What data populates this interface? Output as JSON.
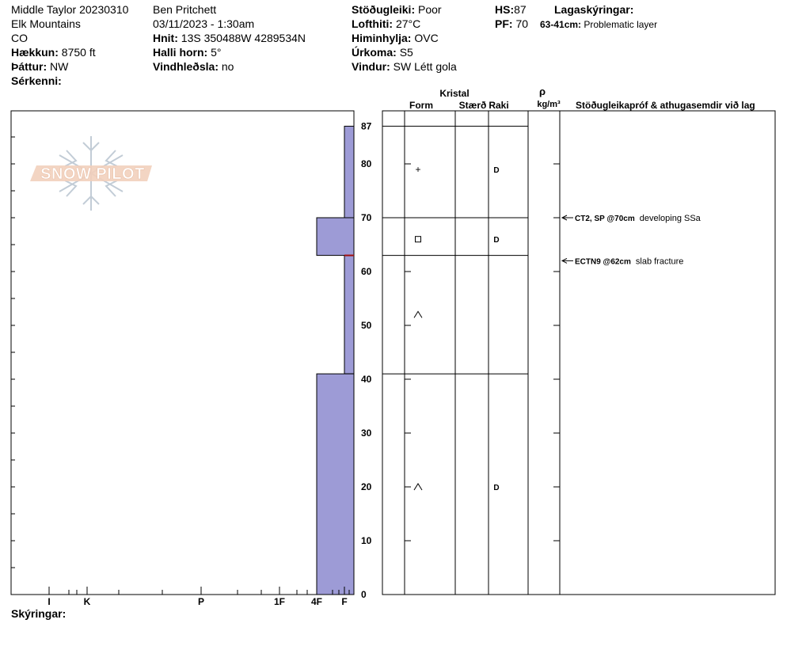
{
  "header": {
    "col1": {
      "site_title": "Middle Taylor 20230310",
      "range": "Elk Mountains",
      "state": "CO",
      "elevation_label": "Hækkun:",
      "elevation_value": "8750 ft",
      "aspect_label": "Þáttur:",
      "aspect_value": "NW",
      "features_label": "Sérkenni:"
    },
    "col2": {
      "observer": "Ben Pritchett",
      "datetime": "03/11/2023 - 1:30am",
      "coords_label": "Hnit:",
      "coords_value": "13S 350488W 4289534N",
      "slope_label": "Halli horn:",
      "slope_value": "5°",
      "wind_loading_label": "Vindhleðsla:",
      "wind_loading_value": "no"
    },
    "col3": {
      "stability_label": "Stöðugleiki:",
      "stability_value": "Poor",
      "air_temp_label": "Lofthiti:",
      "air_temp_value": "27°C",
      "sky_label": "Himinhylja:",
      "sky_value": "OVC",
      "precip_label": "Úrkoma:",
      "precip_value": "S5",
      "wind_label": "Vindur:",
      "wind_value": "SW Létt gola"
    },
    "col4": {
      "hs_label": "HS:",
      "hs_value": "87",
      "pf_label": "PF:",
      "pf_value": "70"
    },
    "col5": {
      "layer_notes_label": "Lagaskýringar:",
      "layer_note_range": "63-41cm:",
      "layer_note_text": "Problematic layer"
    }
  },
  "footer": {
    "notes_label": "Skýringar:"
  },
  "logo": {
    "text": "SNOW PILOT"
  },
  "table_headers": {
    "crystal": "Kristal",
    "form": "Form",
    "size": "Stærð",
    "moisture": "Raki",
    "rho": "ρ",
    "density_unit": "kg/m³",
    "tests": "Stöðugleikapróf & athugasemdir við lag"
  },
  "colors": {
    "hardness_fill": "#9d9bd6",
    "hardness_stroke": "#000000",
    "problem_marker": "#a01010"
  },
  "chart_data": {
    "type": "bar",
    "title": "",
    "ylabel": "",
    "xlabel": "",
    "ylim": [
      0,
      87
    ],
    "y_ticks": [
      0,
      10,
      20,
      30,
      40,
      50,
      60,
      70,
      80,
      87
    ],
    "hardness_ticks": [
      "I",
      "K",
      "P",
      "1F",
      "4F",
      "F"
    ],
    "layers": [
      {
        "top": 87,
        "bottom": 70,
        "hardness": "F",
        "form": "+",
        "moisture": "D"
      },
      {
        "top": 70,
        "bottom": 63,
        "hardness": "4F",
        "form": "□",
        "moisture": "D"
      },
      {
        "top": 63,
        "bottom": 41,
        "hardness": "F",
        "form": "^",
        "moisture": ""
      },
      {
        "top": 41,
        "bottom": 0,
        "hardness": "4F",
        "form": "^",
        "moisture": "D"
      }
    ],
    "form_markers": [
      {
        "depth": 79,
        "symbol": "+"
      },
      {
        "depth": 66,
        "symbol": "□"
      },
      {
        "depth": 52,
        "symbol": "^"
      },
      {
        "depth": 20,
        "symbol": "^"
      }
    ],
    "moisture_markers": [
      {
        "depth": 79,
        "symbol": "D"
      },
      {
        "depth": 66,
        "symbol": "D"
      },
      {
        "depth": 20,
        "symbol": "D"
      }
    ],
    "problem_layer_depth": 63,
    "tests": [
      {
        "depth": 70,
        "result": "CT2, SP @70cm",
        "comment": "developing SSa"
      },
      {
        "depth": 62,
        "result": "ECTN9 @62cm",
        "comment": "slab fracture"
      }
    ]
  }
}
